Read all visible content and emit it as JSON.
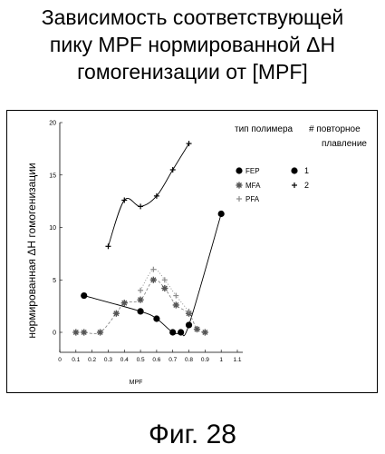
{
  "title_lines": [
    "Зависимость соответствующей",
    "пику MPF нормированной ΔH",
    "гомогенизации от [MPF]"
  ],
  "figure_label": "Фиг. 28",
  "chart_data": {
    "type": "line",
    "xlabel": "MPF",
    "ylabel": "нормированная ΔH гомогенизации",
    "xlim": [
      0,
      1.1
    ],
    "ylim": [
      0,
      20
    ],
    "x_ticks": [
      "0",
      "0.1",
      "0.2",
      "0.3",
      "0.4",
      "0.5",
      "0.6",
      "0.7",
      "0.8",
      "0.9",
      "1",
      "1.1"
    ],
    "y_ticks": [
      "0",
      "5",
      "10",
      "15",
      "20"
    ],
    "legend": {
      "header_polymer": "тип полимера",
      "header_melt": "# повторное",
      "header_melt2": "плавление",
      "polymers": [
        "FEP",
        "MFA",
        "PFA"
      ],
      "melts": [
        "1",
        "2"
      ]
    },
    "colors": {
      "ink": "#000000",
      "dotted": "#8a8a8a"
    },
    "series": [
      {
        "name": "FEP",
        "marker": "circle",
        "style": "solid",
        "x": [
          0.15,
          0.5,
          0.6,
          0.7,
          0.75,
          0.8,
          1.0
        ],
        "y": [
          3.5,
          2.0,
          1.3,
          0.0,
          0.0,
          0.7,
          11.3
        ]
      },
      {
        "name": "FEP",
        "marker": "plus",
        "style": "solid",
        "x": [
          0.3,
          0.4,
          0.5,
          0.6,
          0.7,
          0.8
        ],
        "y": [
          8.2,
          12.6,
          12.0,
          13.0,
          15.5,
          18.0
        ]
      },
      {
        "name": "MFA",
        "marker": "star",
        "style": "dashed",
        "x": [
          0.1,
          0.15,
          0.25,
          0.35,
          0.4,
          0.5,
          0.58,
          0.65,
          0.72,
          0.8,
          0.85,
          0.9
        ],
        "y": [
          0.0,
          0.0,
          0.0,
          1.8,
          2.8,
          3.1,
          5.0,
          4.2,
          2.6,
          1.8,
          0.3,
          0.0
        ]
      },
      {
        "name": "PFA",
        "marker": "plus",
        "style": "dotted",
        "x": [
          0.5,
          0.58,
          0.65,
          0.72,
          0.8
        ],
        "y": [
          4.0,
          6.0,
          5.0,
          3.5,
          2.0
        ]
      }
    ]
  }
}
